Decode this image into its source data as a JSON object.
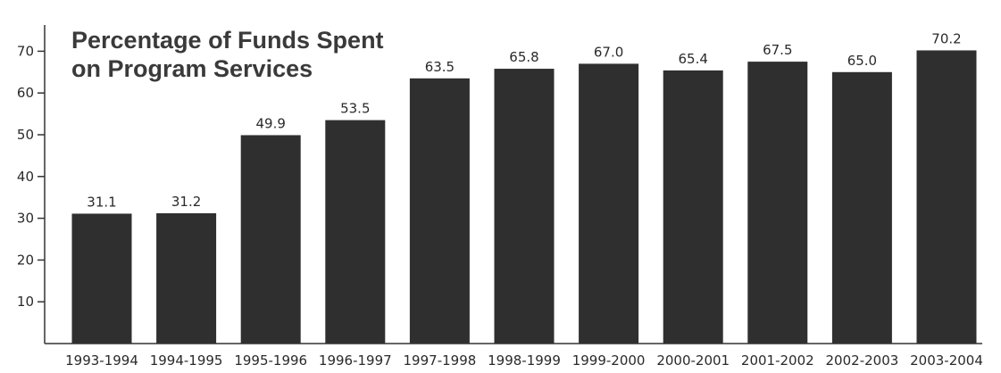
{
  "chart_data": {
    "type": "bar",
    "title_lines": [
      "Percentage of Funds Spent",
      "on Program Services"
    ],
    "categories": [
      "1993-1994",
      "1994-1995",
      "1995-1996",
      "1996-1997",
      "1997-1998",
      "1998-1999",
      "1999-2000",
      "2000-2001",
      "2001-2002",
      "2002-2003",
      "2003-2004"
    ],
    "values": [
      31.1,
      31.2,
      49.9,
      53.5,
      63.5,
      65.8,
      67.0,
      65.4,
      67.5,
      65.0,
      70.2
    ],
    "value_labels": [
      "31.1",
      "31.2",
      "49.9",
      "53.5",
      "63.5",
      "65.8",
      "67.0",
      "65.4",
      "67.5",
      "65.0",
      "70.2"
    ],
    "yticks": [
      10,
      20,
      30,
      40,
      50,
      60,
      70
    ],
    "ylim": [
      0,
      80
    ],
    "xlabel": "",
    "ylabel": "",
    "grid": false,
    "bar_color": "#2f2f2f"
  }
}
